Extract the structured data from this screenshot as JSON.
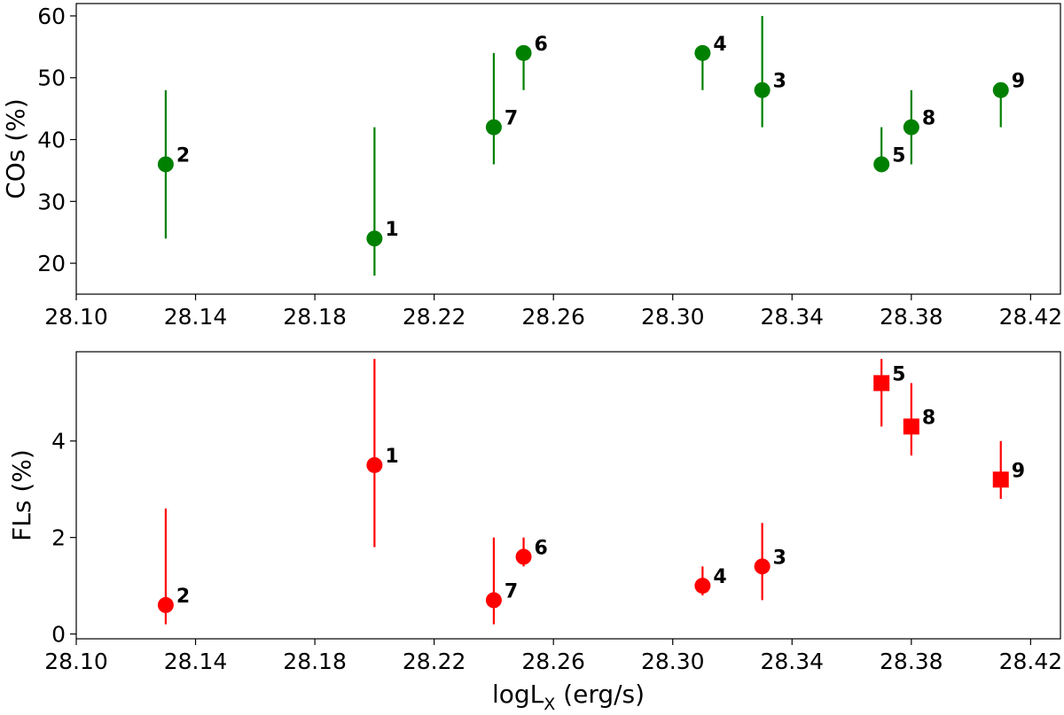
{
  "chart_data": [
    {
      "type": "scatter",
      "ylabel": "COs (%)",
      "xlabel": "",
      "xlim": [
        28.1,
        28.43
      ],
      "ylim": [
        15,
        62
      ],
      "xticks": [
        "28.10",
        "28.14",
        "28.18",
        "28.22",
        "28.26",
        "28.30",
        "28.34",
        "28.38",
        "28.42"
      ],
      "yticks": [
        "20",
        "30",
        "40",
        "50",
        "60"
      ],
      "color": "#008000",
      "points": [
        {
          "label": "1",
          "x": 28.2,
          "y": 24,
          "ylo": 18,
          "yhi": 42,
          "marker": "circle"
        },
        {
          "label": "2",
          "x": 28.13,
          "y": 36,
          "ylo": 24,
          "yhi": 48,
          "marker": "circle"
        },
        {
          "label": "3",
          "x": 28.33,
          "y": 48,
          "ylo": 42,
          "yhi": 60,
          "marker": "circle"
        },
        {
          "label": "4",
          "x": 28.31,
          "y": 54,
          "ylo": 48,
          "yhi": 54,
          "marker": "circle"
        },
        {
          "label": "5",
          "x": 28.37,
          "y": 36,
          "ylo": 36,
          "yhi": 42,
          "marker": "circle"
        },
        {
          "label": "6",
          "x": 28.25,
          "y": 54,
          "ylo": 48,
          "yhi": 54,
          "marker": "circle"
        },
        {
          "label": "7",
          "x": 28.24,
          "y": 42,
          "ylo": 36,
          "yhi": 54,
          "marker": "circle"
        },
        {
          "label": "8",
          "x": 28.38,
          "y": 42,
          "ylo": 36,
          "yhi": 48,
          "marker": "circle"
        },
        {
          "label": "9",
          "x": 28.41,
          "y": 48,
          "ylo": 42,
          "yhi": 48,
          "marker": "circle"
        }
      ]
    },
    {
      "type": "scatter",
      "ylabel": "FLs (%)",
      "xlabel": "logL",
      "xlabel_sub": "X",
      "xlabel_units": " (erg/s)",
      "xlim": [
        28.1,
        28.43
      ],
      "ylim": [
        -0.1,
        5.85
      ],
      "xticks": [
        "28.10",
        "28.14",
        "28.18",
        "28.22",
        "28.26",
        "28.30",
        "28.34",
        "28.38",
        "28.42"
      ],
      "yticks": [
        "0",
        "2",
        "4"
      ],
      "color": "#ff0000",
      "points": [
        {
          "label": "1",
          "x": 28.2,
          "y": 3.5,
          "ylo": 1.8,
          "yhi": 5.7,
          "marker": "circle"
        },
        {
          "label": "2",
          "x": 28.13,
          "y": 0.6,
          "ylo": 0.2,
          "yhi": 2.6,
          "marker": "circle"
        },
        {
          "label": "3",
          "x": 28.33,
          "y": 1.4,
          "ylo": 0.7,
          "yhi": 2.3,
          "marker": "circle"
        },
        {
          "label": "4",
          "x": 28.31,
          "y": 1.0,
          "ylo": 0.8,
          "yhi": 1.4,
          "marker": "circle"
        },
        {
          "label": "5",
          "x": 28.37,
          "y": 5.2,
          "ylo": 4.3,
          "yhi": 5.7,
          "marker": "square"
        },
        {
          "label": "6",
          "x": 28.25,
          "y": 1.6,
          "ylo": 1.4,
          "yhi": 2.0,
          "marker": "circle"
        },
        {
          "label": "7",
          "x": 28.24,
          "y": 0.7,
          "ylo": 0.2,
          "yhi": 2.0,
          "marker": "circle"
        },
        {
          "label": "8",
          "x": 28.38,
          "y": 4.3,
          "ylo": 3.7,
          "yhi": 5.2,
          "marker": "square"
        },
        {
          "label": "9",
          "x": 28.41,
          "y": 3.2,
          "ylo": 2.8,
          "yhi": 4.0,
          "marker": "square"
        }
      ]
    }
  ]
}
